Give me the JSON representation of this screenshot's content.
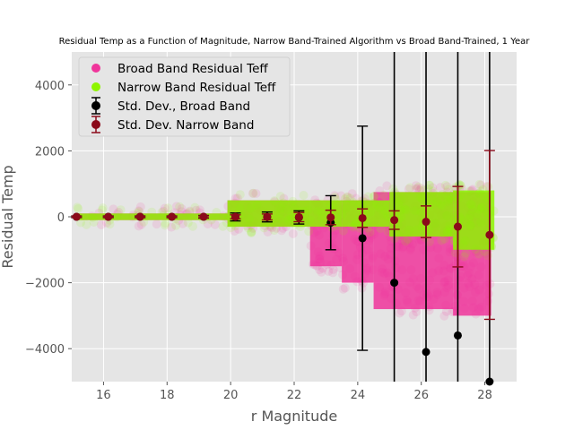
{
  "chart_data": {
    "type": "scatter",
    "title": "Residual Temp as a Function of Magnitude, Narrow Band-Trained Algorithm vs Broad Band-Trained, 1 Year",
    "xlabel": "r Magnitude",
    "ylabel": "Residual Temp",
    "xlim": [
      15,
      29
    ],
    "ylim": [
      -5000,
      5000
    ],
    "x_ticks": [
      16,
      18,
      20,
      22,
      24,
      26,
      28
    ],
    "y_ticks": [
      -4000,
      -2000,
      0,
      2000,
      4000
    ],
    "grid": true,
    "legend_position": "top-left",
    "series": [
      {
        "name": "Broad Band Residual Teff",
        "kind": "scatter-cloud",
        "color": "#f0359b",
        "bands": [
          {
            "x": [
              15.1,
              19.9
            ],
            "y": [
              -100,
              100
            ]
          },
          {
            "x": [
              19.9,
              22.5
            ],
            "y": [
              -300,
              500
            ]
          },
          {
            "x": [
              22.5,
              23.5
            ],
            "y": [
              -1500,
              500
            ]
          },
          {
            "x": [
              23.5,
              24.5
            ],
            "y": [
              -2000,
              500
            ]
          },
          {
            "x": [
              24.5,
              27.0
            ],
            "y": [
              -2800,
              750
            ]
          },
          {
            "x": [
              27.0,
              28.2
            ],
            "y": [
              -3000,
              750
            ]
          }
        ]
      },
      {
        "name": "Narrow Band Residual Teff",
        "kind": "scatter-cloud",
        "color": "#8ef500",
        "bands": [
          {
            "x": [
              15.1,
              19.9
            ],
            "y": [
              -100,
              100
            ]
          },
          {
            "x": [
              19.9,
              23.5
            ],
            "y": [
              -300,
              500
            ]
          },
          {
            "x": [
              23.5,
              25.0
            ],
            "y": [
              -300,
              500
            ]
          },
          {
            "x": [
              25.0,
              27.0
            ],
            "y": [
              -600,
              750
            ]
          },
          {
            "x": [
              27.0,
              28.3
            ],
            "y": [
              -1000,
              800
            ]
          }
        ]
      },
      {
        "name": "Std. Dev., Broad Band",
        "kind": "errorbar",
        "color": "#000000",
        "x": [
          15.15,
          16.15,
          17.15,
          18.15,
          19.15,
          20.15,
          21.15,
          22.15,
          23.15,
          24.15,
          25.15,
          26.15,
          27.15,
          28.15
        ],
        "y": [
          0,
          0,
          0,
          0,
          0,
          -5,
          -5,
          -20,
          -180,
          -650,
          -2000,
          -4100,
          -3600,
          -5000
        ],
        "yerr": [
          25,
          25,
          25,
          25,
          40,
          120,
          150,
          200,
          820,
          3400,
          12000,
          12000,
          12000,
          12000
        ]
      },
      {
        "name": "Std. Dev. Narrow Band",
        "kind": "errorbar",
        "color": "#8b0a1a",
        "x": [
          15.15,
          16.15,
          17.15,
          18.15,
          19.15,
          20.15,
          21.15,
          22.15,
          23.15,
          24.15,
          25.15,
          26.15,
          27.15,
          28.15
        ],
        "y": [
          0,
          0,
          0,
          0,
          0,
          0,
          -5,
          -10,
          -20,
          -40,
          -100,
          -150,
          -300,
          -550
        ],
        "yerr": [
          20,
          20,
          20,
          20,
          30,
          60,
          90,
          140,
          220,
          280,
          280,
          480,
          1220,
          2560
        ]
      }
    ]
  }
}
